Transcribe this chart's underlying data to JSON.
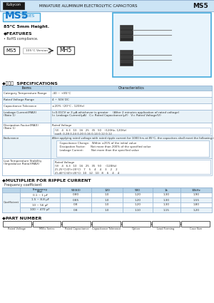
{
  "title_text": "MINIATURE ALUMINUM ELECTROLYTIC CAPACITORS",
  "title_right": "MS5",
  "brand": "Rubycon",
  "header_bg": "#cce4f5",
  "series_name": "MS5",
  "series_sub": "SERIES",
  "temp_height": "85°C 5mm Height.",
  "features_title": "◆FEATURES",
  "features_item": "• RoHS compliance.",
  "ms5_label": "MS5",
  "arrow_label": "105°C Version",
  "mh5_label": "MH5",
  "specs_title": "◆規格表  SPECIFICATIONS",
  "spec_header1": "Items",
  "spec_header2": "Characteristics",
  "spec_rows": [
    [
      "Category Temperature Range",
      "-40 ~ +85°C"
    ],
    [
      "Rated Voltage Range",
      "4 ~ 50V DC"
    ],
    [
      "Capacitance Tolerance",
      "±20%  (20°C , 120Hz)"
    ],
    [
      "Leakage Current(MAX)\n(Note 1)",
      "I=0.01CV or 3 μA whichever is greater     (After 2 minutes application of rated voltage)\nI= Leakage Current(μA)   C= Rated Capacitance(μF)   V= Rated Voltage(V)"
    ],
    [
      "Dissipation Factor(MAX)\n(Note 1)",
      "Rated Voltage\n(V)   4   6.3   10   16   25   35   50    (120Hz, 120Hz)\ntanδ  0.28 0.24 0.20 0.16 0.14 0.12 0.12"
    ],
    [
      "Endurance",
      "After applying rated voltage with rated ripple current for 1000 hrs at 85°C, the capacitors shall meet the following requirements.\n  Capacitance Change:   Within ±25% of the initial value\n  Dissipation Factor:      Not more than 200% of the specified value\n  Leakage Current:         Not more than the specified value"
    ],
    [
      "Low Temperature Stability\n(Impedance Ratio)(MAX)",
      "Rated Voltage\n(V)   4   6.3   10   16   25   35   50     (120Hz)\nZ(-25°C)/Z(+20°C)   7    5    4    4    3    2    2\nZ(-40°C)/Z(+20°C)  10   12   10   8    6    4    4"
    ]
  ],
  "multiplier_title": "◆MULTIPLIER FOR RIPPLE CURRENT",
  "freq_coeff_label": "  Frequency coefficient",
  "mult_col0": "Coefficient",
  "mult_col1_header": "Frequency\n(Hz)",
  "mult_val_headers": [
    "50(60)",
    "120",
    "500",
    "1k",
    "10kHz"
  ],
  "coeff_rows": [
    [
      "0.1 ~ 1 μF",
      "0.80",
      "1.0",
      "1.20",
      "1.30",
      "1.90"
    ],
    [
      "1.5 ~ 8.8 μF",
      "0.85",
      "1.0",
      "1.20",
      "1.30",
      "1.55"
    ],
    [
      "10 ~ 56 μF",
      "0.8",
      "1.0",
      "1.20",
      "1.30",
      "1.80"
    ],
    [
      "100 ~ 470 μF",
      "0.8",
      "1.0",
      "1.10",
      "1.15",
      "1.20"
    ]
  ],
  "part_title": "◆PART NUMBER",
  "part_items": [
    "Rated\nVoltage",
    "MS5s\nSeries",
    "Rated\nCapacitance",
    "Capacitance\nTolerance",
    "Option",
    "Lead\nForming",
    "Case\nSize"
  ],
  "bg_white": "#ffffff",
  "table_header_bg": "#b8d4e8",
  "table_row_bg1": "#ffffff",
  "table_row_bg2": "#e8f2f8",
  "endurance_inner_bg": "#f5f5f5",
  "border_color": "#88aacc",
  "image_box_bg": "#e8f4fc",
  "image_box_border": "#44aadd",
  "series_box_bg": "#e0f0fa",
  "series_box_border": "#44aadd",
  "text_dark": "#111111",
  "text_mid": "#333333",
  "header_text": "#111111"
}
